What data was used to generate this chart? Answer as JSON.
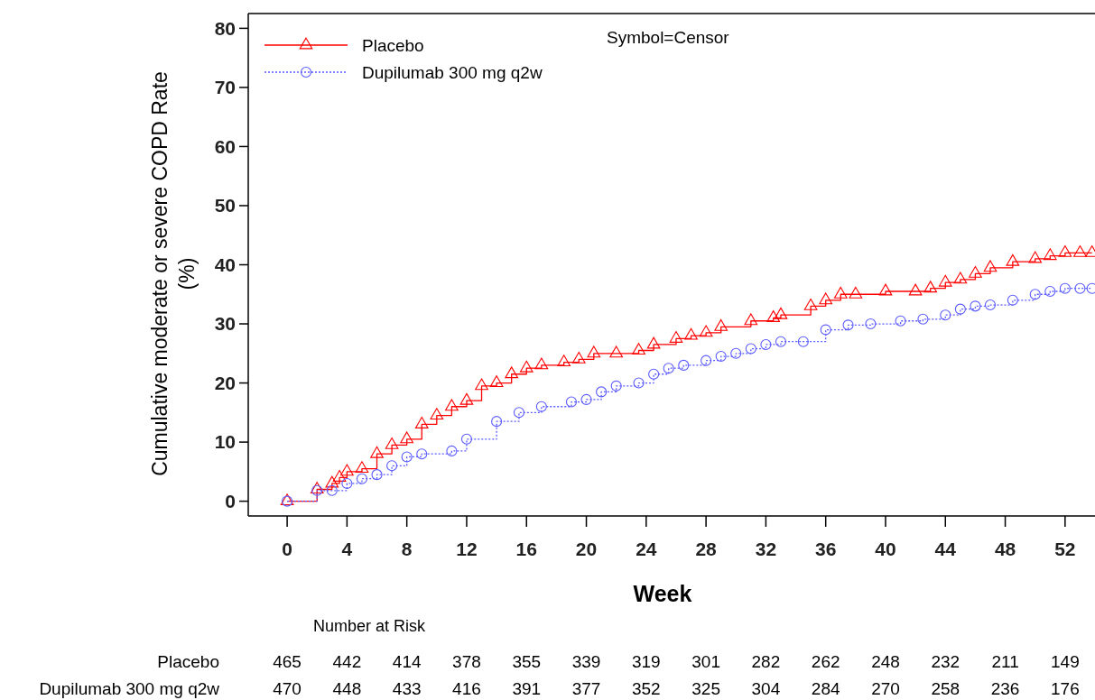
{
  "chart_data": {
    "type": "step",
    "xlabel": "Week",
    "ylabel": "Cumulative moderate or severe COPD Rate\n(%)",
    "xlim": [
      -2.6,
      54
    ],
    "ylim": [
      -2.5,
      82.5
    ],
    "xticks": [
      0,
      4,
      8,
      12,
      16,
      20,
      24,
      28,
      32,
      36,
      40,
      44,
      48,
      52
    ],
    "yticks": [
      0,
      10,
      20,
      30,
      40,
      50,
      60,
      70,
      80
    ],
    "legend": "top left",
    "grid": false,
    "series": [
      {
        "name": "Placebo",
        "color": "#ff0000",
        "marker": "triangle",
        "line_style": "solid",
        "x": [
          0,
          2,
          3,
          3.5,
          4,
          5,
          6,
          7,
          8,
          9,
          10,
          11,
          12,
          13,
          14,
          15,
          16,
          17,
          18.5,
          19.5,
          20.5,
          22,
          23.5,
          24.5,
          26,
          27,
          28,
          29,
          31,
          32.5,
          33,
          35,
          36,
          37,
          38,
          40,
          42,
          43,
          44,
          45,
          46,
          47,
          48.5,
          50,
          51,
          52,
          53,
          53.8
        ],
        "values": [
          0,
          2,
          3,
          4,
          5,
          5.5,
          8,
          9.5,
          10.5,
          13,
          14.5,
          16,
          17,
          19.5,
          20,
          21.5,
          22.5,
          23,
          23.5,
          24,
          25,
          25,
          25.5,
          26.5,
          27.5,
          28,
          28.5,
          29.5,
          30.5,
          31,
          31.5,
          33,
          34,
          35,
          35,
          35.5,
          35.5,
          36,
          37,
          37.5,
          38.5,
          39.5,
          40.5,
          41,
          41.5,
          42,
          42,
          42
        ]
      },
      {
        "name": "Dupilumab 300 mg q2w",
        "color": "#5a5aff",
        "marker": "circle",
        "line_style": "dotted",
        "x": [
          0,
          2,
          3,
          4,
          5,
          6,
          7,
          8,
          9,
          11,
          12,
          14,
          15.5,
          17,
          19,
          20,
          21,
          22,
          23.5,
          24.5,
          25.5,
          26.5,
          28,
          29,
          30,
          31,
          32,
          33,
          34.5,
          36,
          37.5,
          39,
          41,
          42.5,
          44,
          45,
          46,
          47,
          48.5,
          50,
          51,
          52,
          53,
          53.8
        ],
        "values": [
          0,
          1.8,
          1.8,
          3,
          3.8,
          4.5,
          6,
          7.5,
          8,
          8.5,
          10.5,
          13.5,
          15,
          16,
          16.8,
          17.2,
          18.5,
          19.5,
          20,
          21.5,
          22.5,
          23,
          23.8,
          24.5,
          25,
          25.8,
          26.5,
          27,
          27,
          29,
          29.8,
          30,
          30.5,
          30.8,
          31.5,
          32.5,
          33,
          33.2,
          34,
          35,
          35.5,
          36,
          36,
          36
        ]
      }
    ],
    "annotations": [
      "Symbol=Censor",
      "Number at Risk",
      "Placebo",
      "465",
      "442",
      "414",
      "378",
      "355",
      "339",
      "319",
      "301",
      "282",
      "262",
      "248",
      "232",
      "211",
      "149",
      "Dupilumab 300 mg q2w",
      "470",
      "448",
      "433",
      "416",
      "391",
      "377",
      "352",
      "325",
      "304",
      "284",
      "270",
      "258",
      "236",
      "176"
    ]
  }
}
